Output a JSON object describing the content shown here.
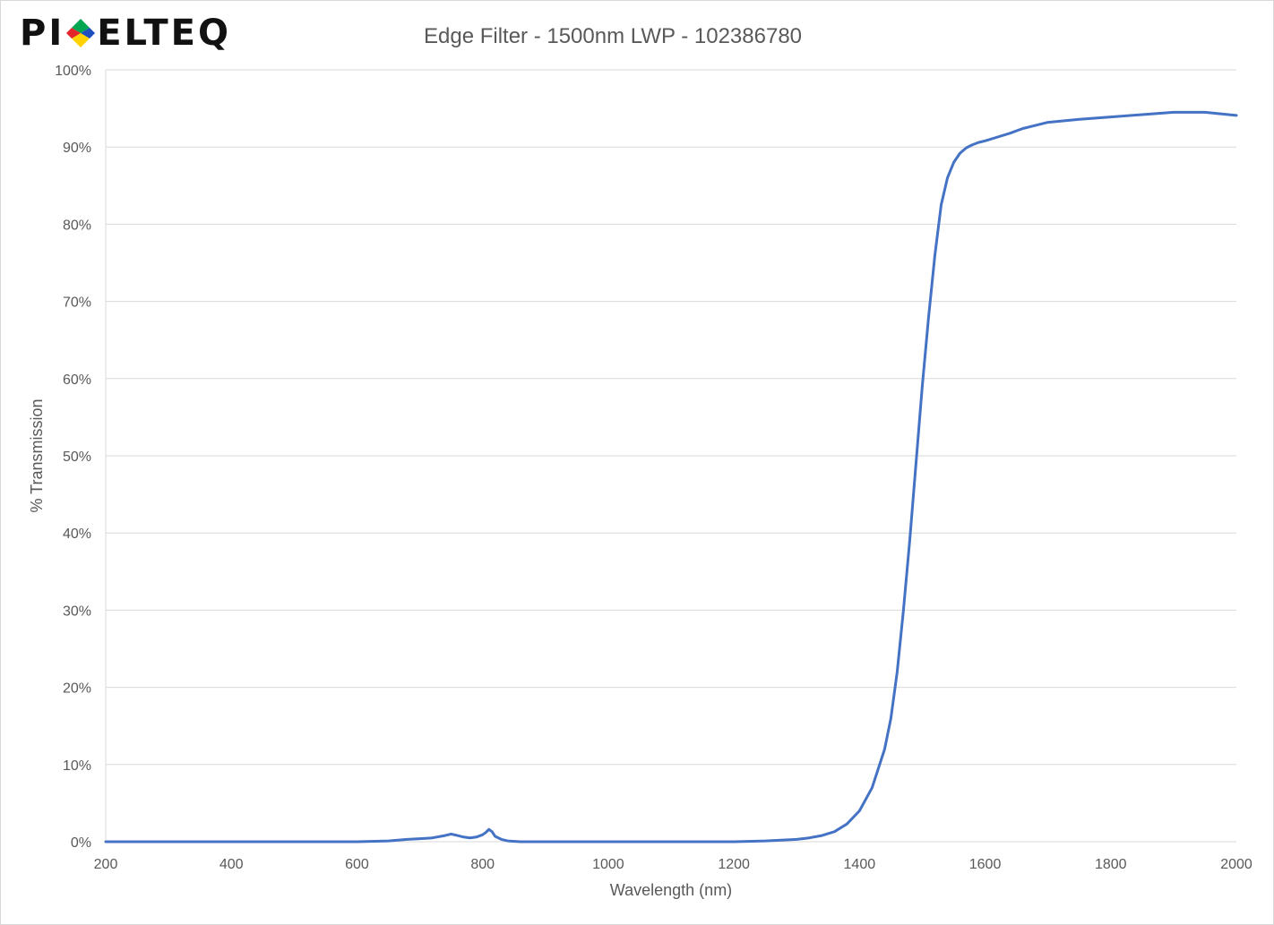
{
  "brand": {
    "logo_left": "PI",
    "logo_right": "ELTEQ",
    "logo_colors": [
      "#e3242b",
      "#00a651",
      "#1f4fbf",
      "#ffd200"
    ]
  },
  "chart_data": {
    "type": "line",
    "title": "Edge Filter - 1500nm LWP - 102386780",
    "xlabel": "Wavelength (nm)",
    "ylabel": "% Transmission",
    "xlim": [
      200,
      2000
    ],
    "ylim": [
      0,
      100
    ],
    "x_ticks": [
      200,
      400,
      600,
      800,
      1000,
      1200,
      1400,
      1600,
      1800,
      2000
    ],
    "y_ticks": [
      0,
      10,
      20,
      30,
      40,
      50,
      60,
      70,
      80,
      90,
      100
    ],
    "y_tick_labels": [
      "0%",
      "10%",
      "20%",
      "30%",
      "40%",
      "50%",
      "60%",
      "70%",
      "80%",
      "90%",
      "100%"
    ],
    "grid": true,
    "line_color": "#4472c4",
    "series": [
      {
        "name": "",
        "x": [
          200,
          300,
          400,
          500,
          600,
          650,
          680,
          700,
          720,
          740,
          750,
          760,
          770,
          780,
          790,
          800,
          805,
          810,
          815,
          820,
          830,
          840,
          860,
          900,
          1000,
          1100,
          1200,
          1250,
          1300,
          1320,
          1340,
          1360,
          1380,
          1400,
          1420,
          1440,
          1450,
          1460,
          1470,
          1480,
          1490,
          1500,
          1510,
          1520,
          1530,
          1540,
          1550,
          1560,
          1570,
          1580,
          1590,
          1600,
          1620,
          1640,
          1660,
          1680,
          1700,
          1750,
          1800,
          1850,
          1900,
          1950,
          2000
        ],
        "y": [
          0.0,
          0.0,
          0.0,
          0.0,
          0.0,
          0.1,
          0.3,
          0.4,
          0.5,
          0.8,
          1.0,
          0.8,
          0.6,
          0.5,
          0.6,
          0.9,
          1.2,
          1.6,
          1.3,
          0.7,
          0.3,
          0.1,
          0.0,
          0.0,
          0.0,
          0.0,
          0.0,
          0.1,
          0.3,
          0.5,
          0.8,
          1.3,
          2.3,
          4.0,
          7.0,
          12.0,
          16.0,
          22.0,
          30.0,
          39.0,
          49.0,
          59.0,
          68.0,
          76.0,
          82.5,
          86.0,
          88.0,
          89.2,
          89.9,
          90.3,
          90.6,
          90.8,
          91.3,
          91.8,
          92.4,
          92.8,
          93.2,
          93.6,
          93.9,
          94.2,
          94.5,
          94.5,
          94.1
        ]
      }
    ]
  }
}
